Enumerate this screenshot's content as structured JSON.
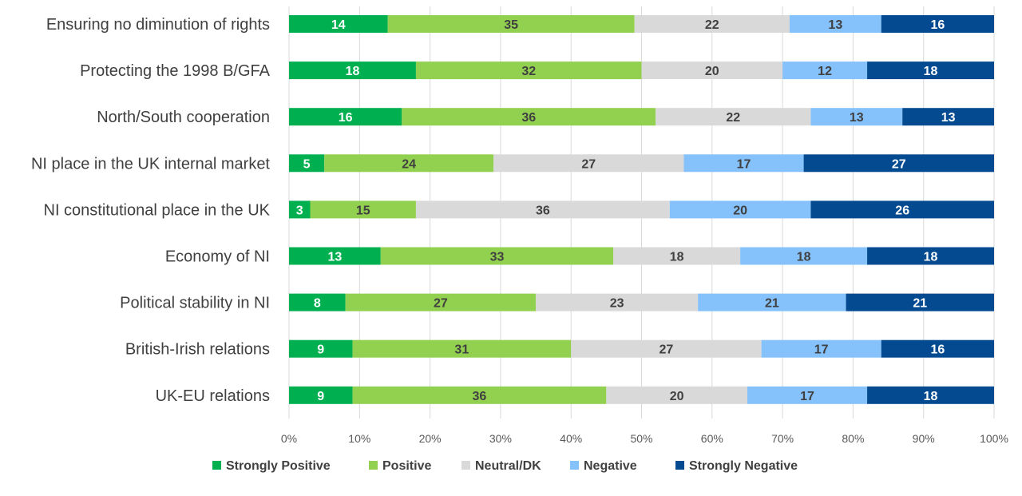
{
  "chart_data": {
    "type": "bar",
    "orientation": "horizontal",
    "stacked": "percent",
    "categories": [
      "Ensuring no diminution of rights",
      "Protecting the 1998 B/GFA",
      "North/South cooperation",
      "NI place in the UK internal market",
      "NI constitutional place in the UK",
      "Economy of NI",
      "Political stability in NI",
      "British-Irish relations",
      "UK-EU relations"
    ],
    "series": [
      {
        "name": "Strongly Positive",
        "color": "#00b050",
        "label_color": "#ffffff",
        "values": [
          14,
          18,
          16,
          5,
          3,
          13,
          8,
          9,
          9
        ]
      },
      {
        "name": "Positive",
        "color": "#92d050",
        "label_color": "#404040",
        "values": [
          35,
          32,
          36,
          24,
          15,
          33,
          27,
          31,
          36
        ]
      },
      {
        "name": "Neutral/DK",
        "color": "#d9d9d9",
        "label_color": "#404040",
        "values": [
          22,
          20,
          22,
          27,
          36,
          18,
          23,
          27,
          20
        ]
      },
      {
        "name": "Negative",
        "color": "#85c1fa",
        "label_color": "#404040",
        "values": [
          13,
          12,
          13,
          17,
          20,
          18,
          21,
          17,
          17
        ]
      },
      {
        "name": "Strongly Negative",
        "color": "#044a90",
        "label_color": "#ffffff",
        "values": [
          16,
          18,
          13,
          27,
          26,
          18,
          21,
          16,
          18
        ]
      }
    ],
    "xlim": [
      0,
      100
    ],
    "xticks": [
      "0%",
      "10%",
      "20%",
      "30%",
      "40%",
      "50%",
      "60%",
      "70%",
      "80%",
      "90%",
      "100%"
    ],
    "grid": true,
    "legend": "bottom"
  }
}
